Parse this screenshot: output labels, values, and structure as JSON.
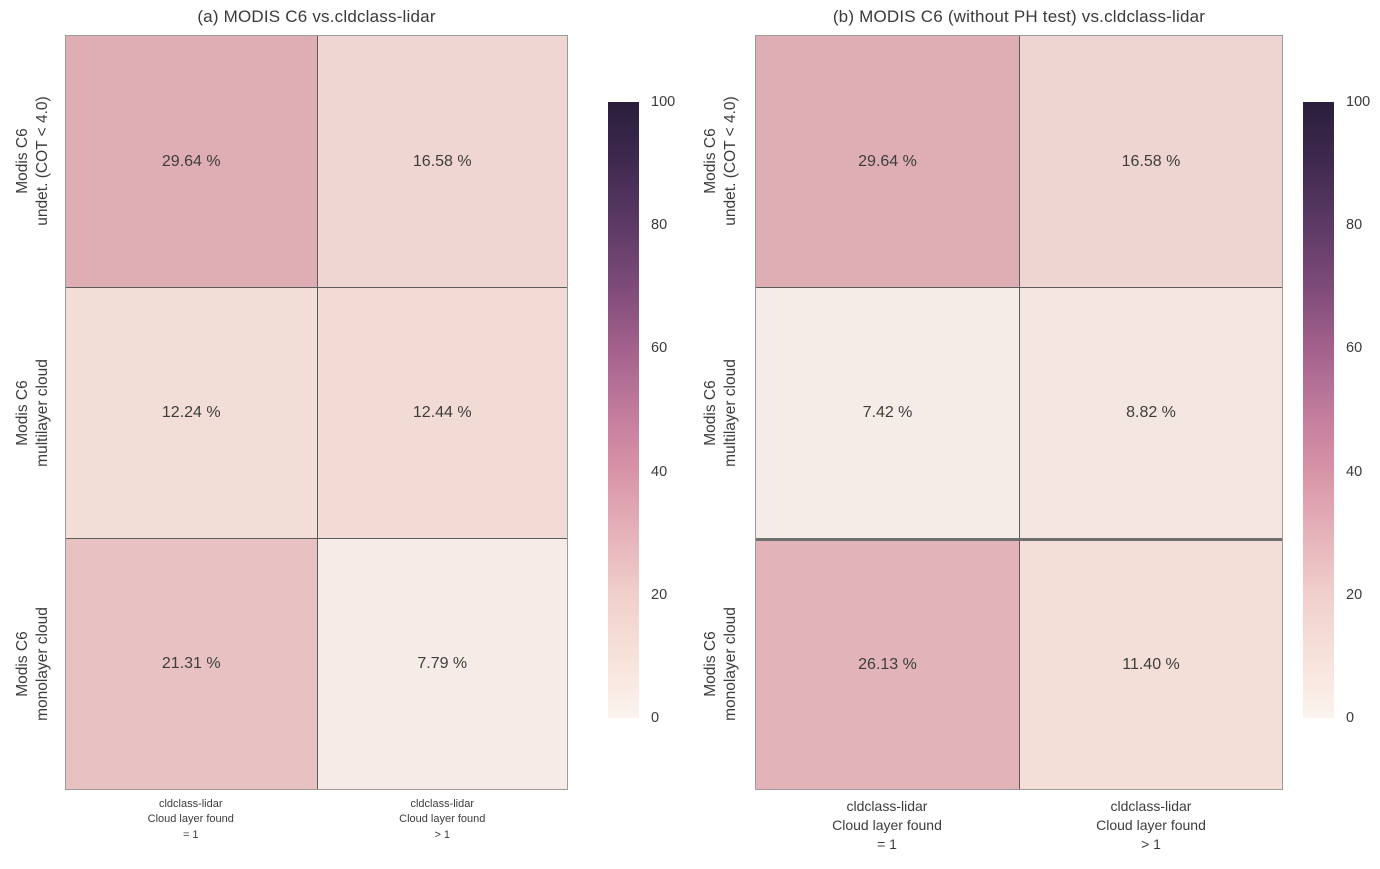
{
  "chart_data": [
    {
      "type": "heatmap",
      "title": "(a) MODIS C6 vs.cldclass-lidar",
      "x_categories": [
        "cldclass-lidar Cloud layer found = 1",
        "cldclass-lidar Cloud layer found > 1"
      ],
      "y_categories": [
        "Modis C6 undet. (COT < 4.0)",
        "Modis C6 multilayer cloud",
        "Modis C6 monolayer cloud"
      ],
      "row_labels": [
        [
          "Modis C6",
          "undet. (COT < 4.0)"
        ],
        [
          "Modis C6",
          "multilayer cloud"
        ],
        [
          "Modis C6",
          "monolayer cloud"
        ]
      ],
      "col_labels": [
        [
          "cldclass-lidar",
          "Cloud layer found",
          "= 1"
        ],
        [
          "cldclass-lidar",
          "Cloud layer found",
          "> 1"
        ]
      ],
      "values": [
        [
          29.64,
          16.58
        ],
        [
          12.24,
          12.44
        ],
        [
          21.31,
          7.79
        ]
      ],
      "cells": [
        [
          {
            "label": "29.64 %",
            "color": "#dfadb4"
          },
          {
            "label": "16.58 %",
            "color": "#f0d6d2"
          }
        ],
        [
          {
            "label": "12.24 %",
            "color": "#f3ded7"
          },
          {
            "label": "12.44 %",
            "color": "#f1dbd4"
          }
        ],
        [
          {
            "label": "21.31 %",
            "color": "#e8c2c3"
          },
          {
            "label": "7.79 %",
            "color": "#f6ebe6"
          }
        ]
      ],
      "colorbar_ticks": [
        "100",
        "80",
        "60",
        "40",
        "20",
        "0"
      ],
      "value_range": [
        0,
        100
      ],
      "grid": false,
      "legend_position": "right-colorbar"
    },
    {
      "type": "heatmap",
      "title": "(b) MODIS C6 (without PH test) vs.cldclass-lidar",
      "x_categories": [
        "cldclass-lidar Cloud layer found = 1",
        "cldclass-lidar Cloud layer found > 1"
      ],
      "y_categories": [
        "Modis C6 undet. (COT < 4.0)",
        "Modis C6 multilayer cloud",
        "Modis C6 monolayer cloud"
      ],
      "row_labels": [
        [
          "Modis C6",
          "undet. (COT < 4.0)"
        ],
        [
          "Modis C6",
          "multilayer cloud"
        ],
        [
          "Modis C6",
          "monolayer cloud"
        ]
      ],
      "col_labels": [
        [
          "cldclass-lidar",
          "Cloud layer found",
          "= 1"
        ],
        [
          "cldclass-lidar",
          "Cloud layer found",
          "> 1"
        ]
      ],
      "values": [
        [
          29.64,
          16.58
        ],
        [
          7.42,
          8.82
        ],
        [
          26.13,
          11.4
        ]
      ],
      "cells": [
        [
          {
            "label": "29.64 %",
            "color": "#dfadb4"
          },
          {
            "label": "16.58 %",
            "color": "#efd5d1"
          }
        ],
        [
          {
            "label": "7.42 %",
            "color": "#f6ece7"
          },
          {
            "label": "8.82 %",
            "color": "#f4e6e0"
          }
        ],
        [
          {
            "label": "26.13 %",
            "color": "#e2b4ba"
          },
          {
            "label": "11.40 %",
            "color": "#f3ded8"
          }
        ]
      ],
      "colorbar_ticks": [
        "100",
        "80",
        "60",
        "40",
        "20",
        "0"
      ],
      "value_range": [
        0,
        100
      ],
      "grid": false,
      "legend_position": "right-colorbar"
    }
  ],
  "colormap_stops": [
    {
      "value": 100,
      "color": "#2a1e3c"
    },
    {
      "value": 90,
      "color": "#402a50"
    },
    {
      "value": 80,
      "color": "#5c3a65"
    },
    {
      "value": 70,
      "color": "#7e4b79"
    },
    {
      "value": 60,
      "color": "#a3618c"
    },
    {
      "value": 50,
      "color": "#c07b9c"
    },
    {
      "value": 40,
      "color": "#d794a7"
    },
    {
      "value": 30,
      "color": "#e5b2ba"
    },
    {
      "value": 20,
      "color": "#f0cfcb"
    },
    {
      "value": 10,
      "color": "#f7e2d9"
    },
    {
      "value": 0,
      "color": "#fbf3ee"
    }
  ],
  "styles": {
    "background": "#ffffff",
    "text_color": "#3c3c3c",
    "grid_line_color": "#5c5c5c",
    "thick_line_color": "#6f6f6f",
    "outer_border_color": "#9b9b9b"
  }
}
